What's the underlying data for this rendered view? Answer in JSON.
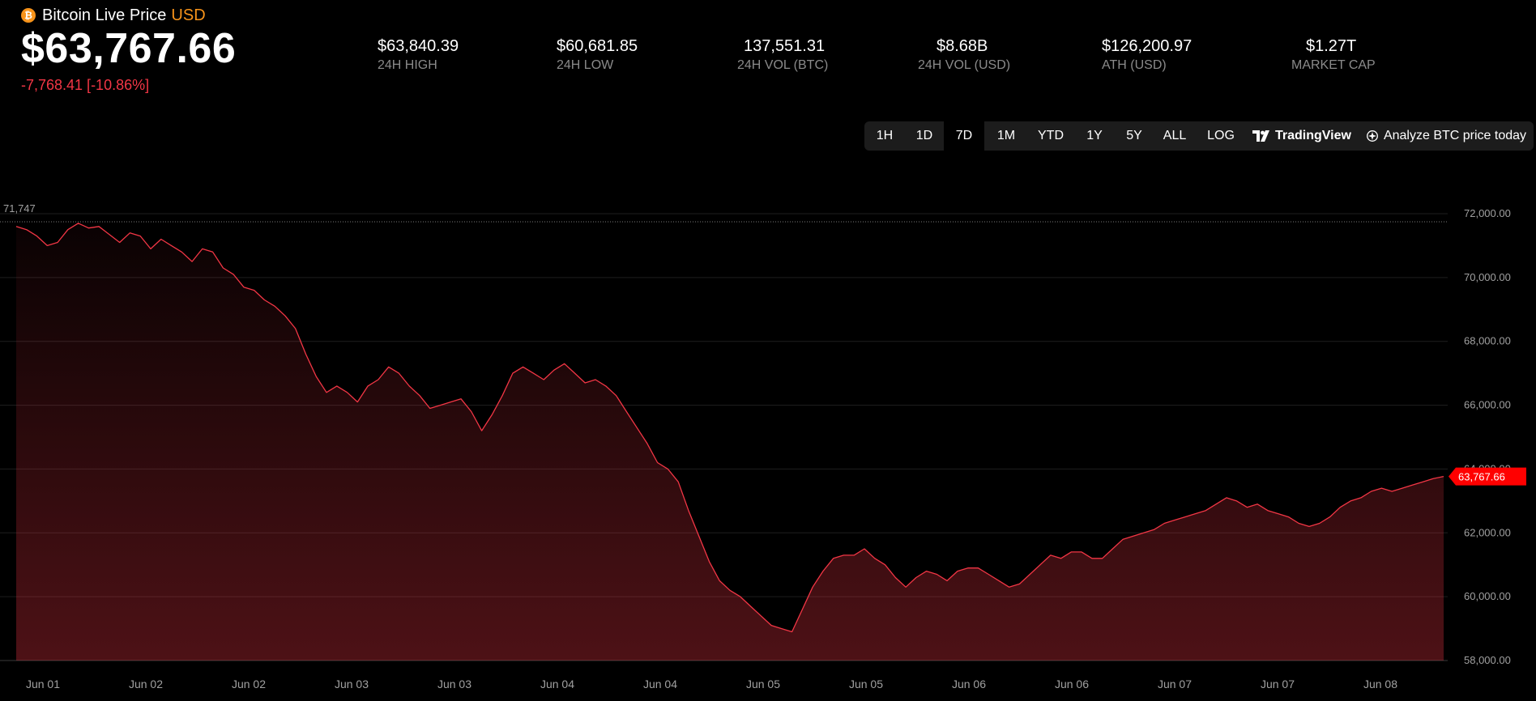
{
  "header": {
    "title": "Bitcoin Live Price",
    "currency": "USD",
    "price": "$63,767.66",
    "change": "-7,768.41 [-10.86%]"
  },
  "stats": [
    {
      "value": "$63,840.39",
      "label": "24H HIGH"
    },
    {
      "value": "$60,681.85",
      "label": "24H LOW"
    },
    {
      "value": "137,551.31",
      "label": "24H VOL (BTC)"
    },
    {
      "value": "$8.68B",
      "label": "24H VOL (USD)"
    },
    {
      "value": "$126,200.97",
      "label": "ATH (USD)"
    },
    {
      "value": "$1.27T",
      "label": "MARKET CAP"
    }
  ],
  "toolbar": {
    "ranges": [
      "1H",
      "1D",
      "7D",
      "1M",
      "YTD",
      "1Y",
      "5Y",
      "ALL"
    ],
    "active": "7D",
    "log": "LOG",
    "tradingview": "TradingView",
    "analyze": "Analyze BTC price today"
  },
  "colors": {
    "accent": "#f7931a",
    "line": "#f23645",
    "negative": "#f23645"
  },
  "chart_data": {
    "type": "area",
    "ylim": [
      58000,
      72000
    ],
    "y_ticks": [
      "72,000.00",
      "70,000.00",
      "68,000.00",
      "66,000.00",
      "64,000.00",
      "62,000.00",
      "60,000.00",
      "58,000.00"
    ],
    "x_tick_labels": [
      "Jun 01",
      "Jun 02",
      "Jun 02",
      "Jun 03",
      "Jun 03",
      "Jun 04",
      "Jun 04",
      "Jun 05",
      "Jun 05",
      "Jun 06",
      "Jun 06",
      "Jun 07",
      "Jun 07",
      "Jun 08"
    ],
    "reference_line": {
      "value": 71747,
      "label": "71,747"
    },
    "last_price": {
      "value": 63767.66,
      "label": "63,767.66"
    },
    "series": [
      {
        "values": [
          71600,
          71500,
          71300,
          71000,
          71100,
          71500,
          71700,
          71550,
          71600,
          71350,
          71100,
          71400,
          71300,
          70900,
          71200,
          71000,
          70800,
          70500,
          70900,
          70800,
          70300,
          70100,
          69700,
          69600,
          69300,
          69100,
          68800,
          68400,
          67600,
          66900,
          66400,
          66600,
          66400,
          66100,
          66600,
          66800,
          67200,
          67000,
          66600,
          66300,
          65900,
          66000,
          66100,
          66200,
          65800,
          65200,
          65700,
          66300,
          67000,
          67200,
          67000,
          66800,
          67100,
          67300,
          67000,
          66700,
          66800,
          66600,
          66300,
          65800,
          65300,
          64800,
          64200,
          64000,
          63600,
          62700,
          61900,
          61100,
          60500,
          60200,
          60000,
          59700,
          59400,
          59100,
          59000,
          58900,
          59600,
          60300,
          60800,
          61200,
          61300,
          61300,
          61500,
          61200,
          61000,
          60600,
          60300,
          60600,
          60800,
          60700,
          60500,
          60800,
          60900,
          60900,
          60700,
          60500,
          60300,
          60400,
          60700,
          61000,
          61300,
          61200,
          61400,
          61400,
          61200,
          61200,
          61500,
          61800,
          61900,
          62000,
          62100,
          62300,
          62400,
          62500,
          62600,
          62700,
          62900,
          63100,
          63000,
          62800,
          62900,
          62700,
          62600,
          62500,
          62300,
          62200,
          62300,
          62500,
          62800,
          63000,
          63100,
          63300,
          63400,
          63300,
          63400,
          63500,
          63600,
          63700,
          63767.66
        ]
      }
    ]
  }
}
